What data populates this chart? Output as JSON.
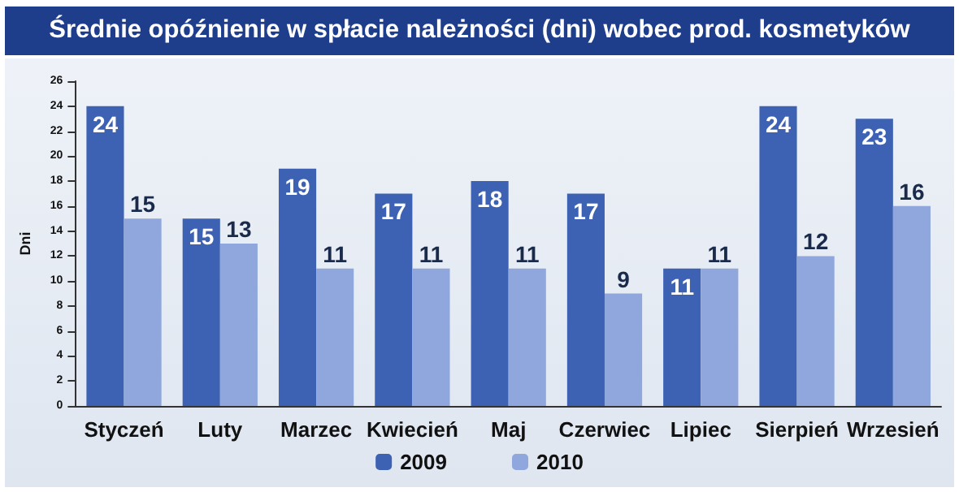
{
  "chart_data": {
    "type": "bar",
    "title": "Średnie opóźnienie w spłacie należności (dni) wobec prod. kosmetyków",
    "ylabel": "Dni",
    "categories": [
      "Styczeń",
      "Luty",
      "Marzec",
      "Kwiecień",
      "Maj",
      "Czerwiec",
      "Lipiec",
      "Sierpień",
      "Wrzesień"
    ],
    "series": [
      {
        "name": "2009",
        "color": "#3d62b3",
        "values": [
          24,
          15,
          19,
          17,
          18,
          17,
          11,
          24,
          23
        ]
      },
      {
        "name": "2010",
        "color": "#8fa7dc",
        "values": [
          15,
          13,
          11,
          11,
          11,
          9,
          11,
          12,
          16
        ]
      }
    ],
    "ylim": [
      0,
      26
    ],
    "yticks": [
      0,
      2,
      4,
      6,
      8,
      10,
      12,
      14,
      16,
      18,
      20,
      22,
      24,
      26
    ],
    "grid": false,
    "legend": "bottom",
    "data_labels": true
  }
}
